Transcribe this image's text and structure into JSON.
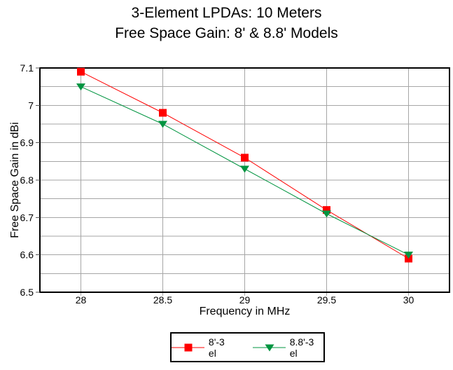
{
  "chart_data": {
    "type": "line",
    "title": "3-Element LPDAs: 10 Meters",
    "subtitle": "Free Space Gain: 8' & 8.8' Models",
    "xlabel": "Frequency in MHz",
    "ylabel": "Free Space Gain in dBi",
    "x": [
      28,
      28.5,
      29,
      29.5,
      30
    ],
    "series": [
      {
        "name": "8'-3 el",
        "marker": "square",
        "color": "#FF0000",
        "values": [
          7.09,
          6.98,
          6.86,
          6.72,
          6.59
        ]
      },
      {
        "name": "8.8'-3 el",
        "marker": "triangle-down",
        "color": "#009440",
        "values": [
          7.05,
          6.95,
          6.83,
          6.71,
          6.6
        ]
      }
    ],
    "xlim": [
      27.75,
      30.25
    ],
    "ylim": [
      6.5,
      7.1
    ],
    "x_ticks": {
      "values": [
        28,
        28.5,
        29,
        29.5,
        30
      ],
      "labels": [
        "28",
        "28.5",
        "29",
        "29.5",
        "30"
      ]
    },
    "y_ticks": {
      "values": [
        7.1,
        7,
        6.9,
        6.8,
        6.7,
        6.6,
        6.5
      ],
      "labels": [
        "7.1",
        "7",
        "6.9",
        "6.8",
        "6.7",
        "6.6",
        "6.5"
      ]
    },
    "y_minor_step": 0.05,
    "grid": true,
    "legend_position": "bottom-center",
    "colors": {
      "grid": "#A6A6A6",
      "axis": "#000000",
      "background": "#FFFFFF",
      "text": "#000000"
    }
  }
}
